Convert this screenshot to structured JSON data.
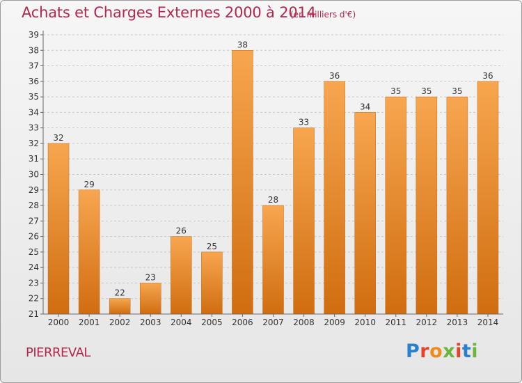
{
  "header": {
    "title": "Achats et Charges Externes 2000 à 2014",
    "subtitle": "(en milliers d'€)"
  },
  "commune": "PIERREVAL",
  "logo": {
    "text": "Proxiti",
    "letters": [
      "P",
      "r",
      "o",
      "x",
      "i",
      "t",
      "i"
    ]
  },
  "colors": {
    "title": "#b5264c",
    "bar_light": "#f7a64f",
    "bar_dark": "#d06d10"
  },
  "chart_data": {
    "type": "bar",
    "title": "Achats et Charges Externes 2000 à 2014",
    "xlabel": "",
    "ylabel": "",
    "categories": [
      "2000",
      "2001",
      "2002",
      "2003",
      "2004",
      "2005",
      "2006",
      "2007",
      "2008",
      "2009",
      "2010",
      "2011",
      "2012",
      "2013",
      "2014"
    ],
    "values": [
      32,
      29,
      22,
      23,
      26,
      25,
      38,
      28,
      33,
      36,
      34,
      35,
      35,
      35,
      36
    ],
    "ylim": [
      21,
      39
    ],
    "yticks": [
      21,
      22,
      23,
      24,
      25,
      26,
      27,
      28,
      29,
      30,
      31,
      32,
      33,
      34,
      35,
      36,
      37,
      38,
      39
    ],
    "grid": "horizontal dashed",
    "legend": "none"
  }
}
